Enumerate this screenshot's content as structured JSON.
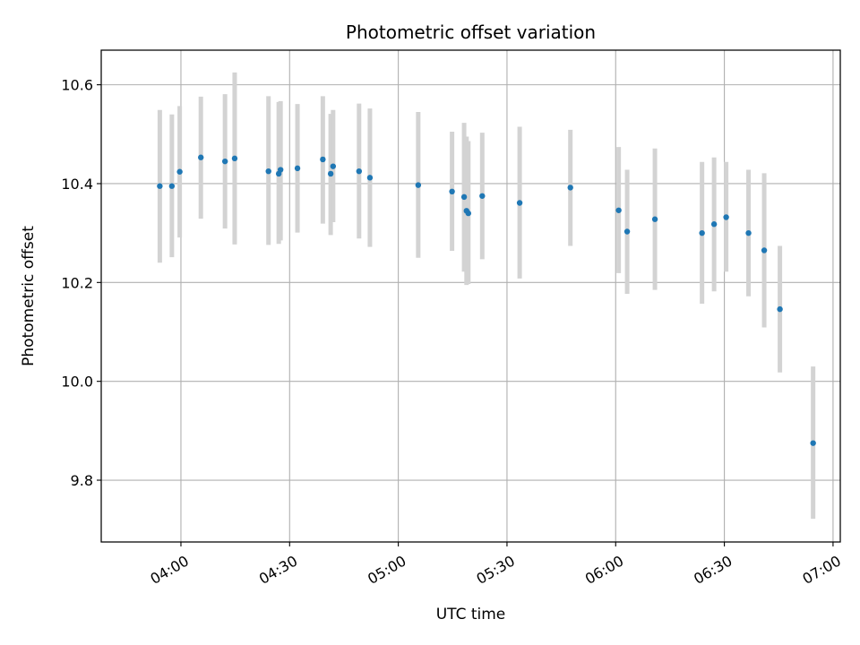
{
  "chart_data": {
    "type": "scatter",
    "title": "Photometric offset variation",
    "xlabel": "UTC time",
    "ylabel": "Photometric offset",
    "grid": true,
    "colors": {
      "point": "#1f77b4",
      "errorbar": "#d3d3d3",
      "grid": "#b0b0b0"
    },
    "xlim": [
      "03:38",
      "07:02"
    ],
    "ylim": [
      9.675,
      10.67
    ],
    "x_ticks": [
      "04:00",
      "04:30",
      "05:00",
      "05:30",
      "06:00",
      "06:30",
      "07:00"
    ],
    "y_ticks": [
      9.8,
      10.0,
      10.2,
      10.4,
      10.6
    ],
    "y_tick_labels": [
      "9.8",
      "10.0",
      "10.2",
      "10.4",
      "10.6"
    ],
    "points": [
      {
        "x": "03:54:10",
        "y": 10.395,
        "ylow": 10.24,
        "yhigh": 10.549
      },
      {
        "x": "03:57:30",
        "y": 10.395,
        "ylow": 10.251,
        "yhigh": 10.54
      },
      {
        "x": "03:59:40",
        "y": 10.424,
        "ylow": 10.291,
        "yhigh": 10.557
      },
      {
        "x": "04:05:30",
        "y": 10.453,
        "ylow": 10.329,
        "yhigh": 10.576
      },
      {
        "x": "04:12:10",
        "y": 10.445,
        "ylow": 10.309,
        "yhigh": 10.581
      },
      {
        "x": "04:14:50",
        "y": 10.451,
        "ylow": 10.277,
        "yhigh": 10.625
      },
      {
        "x": "04:24:10",
        "y": 10.425,
        "ylow": 10.276,
        "yhigh": 10.577
      },
      {
        "x": "04:27:00",
        "y": 10.42,
        "ylow": 10.278,
        "yhigh": 10.565
      },
      {
        "x": "04:27:30",
        "y": 10.428,
        "ylow": 10.285,
        "yhigh": 10.567
      },
      {
        "x": "04:32:10",
        "y": 10.431,
        "ylow": 10.301,
        "yhigh": 10.561
      },
      {
        "x": "04:39:10",
        "y": 10.449,
        "ylow": 10.319,
        "yhigh": 10.577
      },
      {
        "x": "04:41:20",
        "y": 10.42,
        "ylow": 10.296,
        "yhigh": 10.541
      },
      {
        "x": "04:42:00",
        "y": 10.435,
        "ylow": 10.322,
        "yhigh": 10.549
      },
      {
        "x": "04:49:10",
        "y": 10.425,
        "ylow": 10.289,
        "yhigh": 10.562
      },
      {
        "x": "04:52:10",
        "y": 10.412,
        "ylow": 10.272,
        "yhigh": 10.552
      },
      {
        "x": "05:05:30",
        "y": 10.397,
        "ylow": 10.25,
        "yhigh": 10.545
      },
      {
        "x": "05:14:50",
        "y": 10.384,
        "ylow": 10.264,
        "yhigh": 10.505
      },
      {
        "x": "05:18:10",
        "y": 10.373,
        "ylow": 10.222,
        "yhigh": 10.523
      },
      {
        "x": "05:18:50",
        "y": 10.345,
        "ylow": 10.195,
        "yhigh": 10.495
      },
      {
        "x": "05:19:20",
        "y": 10.34,
        "ylow": 10.197,
        "yhigh": 10.486
      },
      {
        "x": "05:23:10",
        "y": 10.375,
        "ylow": 10.247,
        "yhigh": 10.503
      },
      {
        "x": "05:33:30",
        "y": 10.361,
        "ylow": 10.208,
        "yhigh": 10.515
      },
      {
        "x": "05:47:30",
        "y": 10.392,
        "ylow": 10.274,
        "yhigh": 10.509
      },
      {
        "x": "06:00:50",
        "y": 10.346,
        "ylow": 10.219,
        "yhigh": 10.474
      },
      {
        "x": "06:03:10",
        "y": 10.303,
        "ylow": 10.177,
        "yhigh": 10.428
      },
      {
        "x": "06:10:50",
        "y": 10.328,
        "ylow": 10.185,
        "yhigh": 10.471
      },
      {
        "x": "06:23:50",
        "y": 10.3,
        "ylow": 10.157,
        "yhigh": 10.444
      },
      {
        "x": "06:27:10",
        "y": 10.318,
        "ylow": 10.182,
        "yhigh": 10.453
      },
      {
        "x": "06:30:30",
        "y": 10.332,
        "ylow": 10.222,
        "yhigh": 10.444
      },
      {
        "x": "06:36:40",
        "y": 10.3,
        "ylow": 10.172,
        "yhigh": 10.428
      },
      {
        "x": "06:41:00",
        "y": 10.265,
        "ylow": 10.109,
        "yhigh": 10.421
      },
      {
        "x": "06:45:20",
        "y": 10.146,
        "ylow": 10.018,
        "yhigh": 10.274
      },
      {
        "x": "06:54:30",
        "y": 9.875,
        "ylow": 9.722,
        "yhigh": 10.03
      }
    ]
  }
}
